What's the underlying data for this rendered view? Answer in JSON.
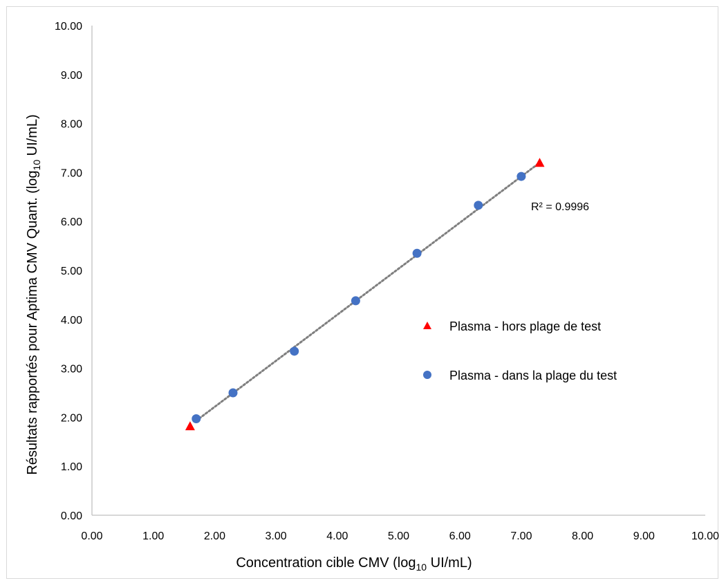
{
  "chart_data": {
    "type": "scatter",
    "xlabel": {
      "main": "Concentration cible CMV (log",
      "sub": "10",
      "post": " UI/mL)"
    },
    "ylabel": {
      "main": "Résultats rapportés pour Aptima CMV Quant. (log",
      "sub": "10",
      "post": " UI/mL)"
    },
    "xlim": [
      0,
      10
    ],
    "ylim": [
      0,
      10
    ],
    "x_ticks": [
      "0.00",
      "1.00",
      "2.00",
      "3.00",
      "4.00",
      "5.00",
      "6.00",
      "7.00",
      "8.00",
      "9.00",
      "10.00"
    ],
    "y_ticks": [
      "0.00",
      "1.00",
      "2.00",
      "3.00",
      "4.00",
      "5.00",
      "6.00",
      "7.00",
      "8.00",
      "9.00",
      "10.00"
    ],
    "grid": false,
    "series": [
      {
        "name": "Plasma - hors plage de test",
        "marker": "triangle",
        "color": "#ff0000",
        "points": [
          {
            "x": 1.6,
            "y": 1.82
          },
          {
            "x": 7.3,
            "y": 7.2
          }
        ]
      },
      {
        "name": "Plasma - dans la plage du test",
        "marker": "circle",
        "color": "#4472c4",
        "points": [
          {
            "x": 1.7,
            "y": 1.97
          },
          {
            "x": 2.3,
            "y": 2.5
          },
          {
            "x": 3.3,
            "y": 3.35
          },
          {
            "x": 4.3,
            "y": 4.38
          },
          {
            "x": 5.3,
            "y": 5.35
          },
          {
            "x": 6.3,
            "y": 6.33
          },
          {
            "x": 7.0,
            "y": 6.92
          }
        ]
      }
    ],
    "trendline": {
      "style": "dotted",
      "color": "#7f7f7f",
      "x_start": 1.7,
      "y_start": 1.93,
      "x_end": 7.3,
      "y_end": 7.2,
      "r_squared_label": "R² = 0.9996"
    },
    "legend": {
      "placement": "right-middle"
    }
  }
}
